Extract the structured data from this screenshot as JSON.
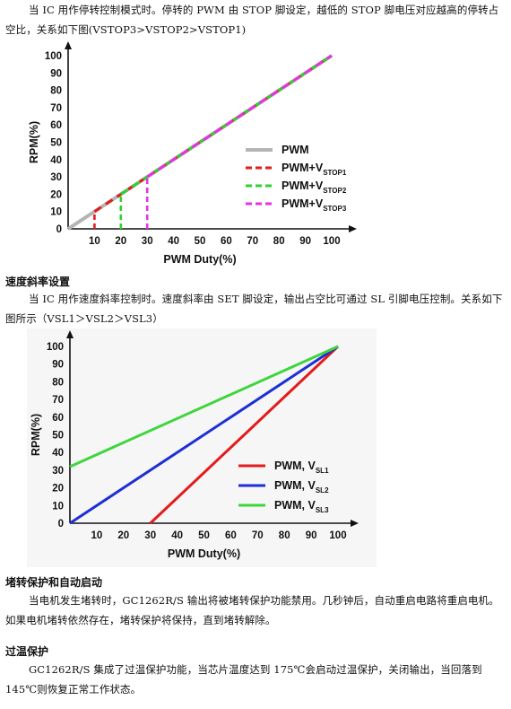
{
  "sections": {
    "p1": "当 IC 用作停转控制模式时。停转的 PWM 由 STOP 脚设定，越低的 STOP 脚电压对应越高的停转占空比，关系如下图(VSTOP3>VSTOP2>VSTOP1)",
    "h2": "速度斜率设置",
    "p2": "当 IC 用作速度斜率控制时。速度斜率由 SET 脚设定，输出占空比可通过 SL 引脚电压控制。关系如下图所示（VSL1＞VSL2＞VSL3）",
    "h3": "堵转保护和自动启动",
    "p3": "当电机发生堵转时，GC1262R/S 输出将被堵转保护功能禁用。几秒钟后，自动重启电路将重启电机。如果电机堵转依然存在，堵转保护将保持，直到堵转解除。",
    "h4": "过温保护",
    "p4": "GC1262R/S 集成了过温保护功能，当芯片温度达到 175℃会启动过温保护，关闭输出，当回落到 145℃则恢复正常工作状态。"
  },
  "chart_data": [
    {
      "type": "line",
      "title": "",
      "xlabel": "PWM Duty(%)",
      "ylabel": "RPM(%)",
      "xlim": [
        0,
        100
      ],
      "ylim": [
        0,
        100
      ],
      "x_ticks": [
        10,
        20,
        30,
        40,
        50,
        60,
        70,
        80,
        90,
        100
      ],
      "y_ticks": [
        0,
        10,
        20,
        30,
        40,
        50,
        60,
        70,
        80,
        90,
        100
      ],
      "grid": false,
      "legend_position": "right",
      "series": [
        {
          "name": "PWM",
          "label_main": "PWM",
          "label_sub": "",
          "style": "solid",
          "color": "#b4b4b4",
          "points": [
            [
              0,
              0
            ],
            [
              100,
              100
            ]
          ]
        },
        {
          "name": "PWM+VSTOP1",
          "label_main": "PWM+V",
          "label_sub": "STOP1",
          "style": "dashed",
          "color": "#e41b1b",
          "points": [
            [
              10,
              10
            ],
            [
              100,
              100
            ]
          ],
          "start_drop": [
            10,
            10
          ]
        },
        {
          "name": "PWM+VSTOP2",
          "label_main": "PWM+V",
          "label_sub": "STOP2",
          "style": "dashed",
          "color": "#2ed12e",
          "points": [
            [
              20,
              20
            ],
            [
              100,
              100
            ]
          ],
          "start_drop": [
            20,
            20
          ]
        },
        {
          "name": "PWM+VSTOP3",
          "label_main": "PWM+V",
          "label_sub": "STOP3",
          "style": "dashed",
          "color": "#e632e6",
          "points": [
            [
              30,
              30
            ],
            [
              100,
              100
            ]
          ],
          "start_drop": [
            30,
            30
          ]
        }
      ]
    },
    {
      "type": "line",
      "title": "",
      "xlabel": "PWM Duty(%)",
      "ylabel": "RPM(%)",
      "xlim": [
        0,
        100
      ],
      "ylim": [
        0,
        100
      ],
      "x_ticks": [
        10,
        20,
        30,
        40,
        50,
        60,
        70,
        80,
        90,
        100
      ],
      "y_ticks": [
        0,
        10,
        20,
        30,
        40,
        50,
        60,
        70,
        80,
        90,
        100
      ],
      "grid": false,
      "legend_position": "bottom-right",
      "series": [
        {
          "name": "PWM, VSL1",
          "label_main": "PWM,  V",
          "label_sub": "SL1",
          "style": "solid",
          "color": "#e41b1b",
          "points": [
            [
              30,
              0
            ],
            [
              100,
              100
            ]
          ]
        },
        {
          "name": "PWM, VSL2",
          "label_main": "PWM,  V",
          "label_sub": "SL2",
          "style": "solid",
          "color": "#1c2fd6",
          "points": [
            [
              0,
              0
            ],
            [
              100,
              100
            ]
          ]
        },
        {
          "name": "PWM, VSL3",
          "label_main": "PWM,  V",
          "label_sub": "SL3",
          "style": "solid",
          "color": "#3ed63e",
          "points": [
            [
              0,
              32
            ],
            [
              100,
              100
            ]
          ]
        }
      ]
    }
  ]
}
